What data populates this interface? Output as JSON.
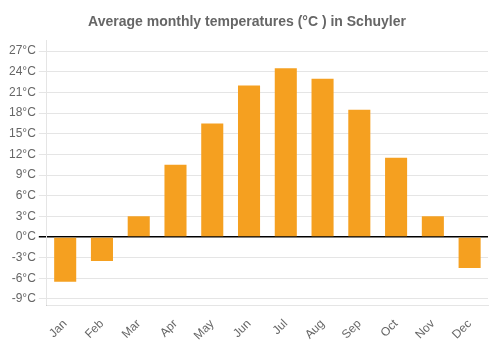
{
  "chart_data": {
    "type": "bar",
    "title": "Average monthly temperatures (°C ) in Schuyler",
    "categories": [
      "Jan",
      "Feb",
      "Mar",
      "Apr",
      "May",
      "Jun",
      "Jul",
      "Aug",
      "Sep",
      "Oct",
      "Nov",
      "Dec"
    ],
    "values": [
      -6.5,
      -3.5,
      3.0,
      10.5,
      16.5,
      22.0,
      24.5,
      23.0,
      18.5,
      11.5,
      3.0,
      -4.5
    ],
    "color": "#F5A020",
    "ylim": [
      -10,
      28.5
    ],
    "yticks": [
      {
        "value": -9,
        "label": "-9°C"
      },
      {
        "value": -6,
        "label": "-6°C"
      },
      {
        "value": -3,
        "label": "-3°C"
      },
      {
        "value": 0,
        "label": "0°C"
      },
      {
        "value": 3,
        "label": "3°C"
      },
      {
        "value": 6,
        "label": "6°C"
      },
      {
        "value": 9,
        "label": "9°C"
      },
      {
        "value": 12,
        "label": "12°C"
      },
      {
        "value": 15,
        "label": "15°C"
      },
      {
        "value": 18,
        "label": "18°C"
      },
      {
        "value": 21,
        "label": "21°C"
      },
      {
        "value": 24,
        "label": "24°C"
      },
      {
        "value": 27,
        "label": "27°C"
      }
    ],
    "grid": true
  }
}
